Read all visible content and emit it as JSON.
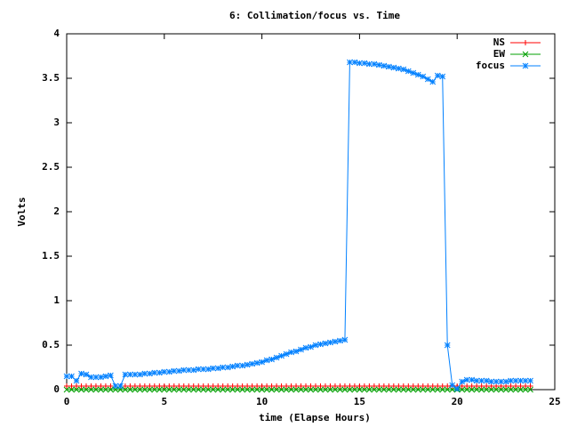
{
  "chart_data": {
    "type": "line",
    "title": "6: Collimation/focus vs. Time",
    "x_label": "time (Elapse Hours)",
    "y_label": "Volts",
    "x": [
      0,
      0.25,
      0.5,
      0.75,
      1,
      1.25,
      1.5,
      1.75,
      2,
      2.25,
      2.5,
      2.75,
      3,
      3.25,
      3.5,
      3.75,
      4,
      4.25,
      4.5,
      4.75,
      5,
      5.25,
      5.5,
      5.75,
      6,
      6.25,
      6.5,
      6.75,
      7,
      7.25,
      7.5,
      7.75,
      8,
      8.25,
      8.5,
      8.75,
      9,
      9.25,
      9.5,
      9.75,
      10,
      10.25,
      10.5,
      10.75,
      11,
      11.25,
      11.5,
      11.75,
      12,
      12.25,
      12.5,
      12.75,
      13,
      13.25,
      13.5,
      13.75,
      14,
      14.25,
      14.5,
      14.75,
      15,
      15.25,
      15.5,
      15.75,
      16,
      16.25,
      16.5,
      16.75,
      17,
      17.25,
      17.5,
      17.75,
      18,
      18.25,
      18.5,
      18.75,
      19,
      19.25,
      19.5,
      19.75,
      20,
      20.25,
      20.5,
      20.75,
      21,
      21.25,
      21.5,
      21.75,
      22,
      22.25,
      22.5,
      22.75,
      23,
      23.25,
      23.5,
      23.75
    ],
    "series": [
      {
        "name": "NS",
        "color": "#ff0000",
        "marker": "plus",
        "values": [
          0.04,
          0.04,
          0.04,
          0.04,
          0.04,
          0.04,
          0.04,
          0.04,
          0.04,
          0.04,
          0.04,
          0.04,
          0.04,
          0.04,
          0.04,
          0.04,
          0.04,
          0.04,
          0.04,
          0.04,
          0.04,
          0.04,
          0.04,
          0.04,
          0.04,
          0.04,
          0.04,
          0.04,
          0.04,
          0.04,
          0.04,
          0.04,
          0.04,
          0.04,
          0.04,
          0.04,
          0.04,
          0.04,
          0.04,
          0.04,
          0.04,
          0.04,
          0.04,
          0.04,
          0.04,
          0.04,
          0.04,
          0.04,
          0.04,
          0.04,
          0.04,
          0.04,
          0.04,
          0.04,
          0.04,
          0.04,
          0.04,
          0.04,
          0.04,
          0.04,
          0.04,
          0.04,
          0.04,
          0.04,
          0.04,
          0.04,
          0.04,
          0.04,
          0.04,
          0.04,
          0.04,
          0.04,
          0.04,
          0.04,
          0.04,
          0.04,
          0.04,
          0.04,
          0.04,
          0.04,
          0.04,
          0.04,
          0.04,
          0.04,
          0.04,
          0.04,
          0.04,
          0.04,
          0.04,
          0.04,
          0.04,
          0.04,
          0.04,
          0.04,
          0.04,
          0.04
        ]
      },
      {
        "name": "EW",
        "color": "#00a000",
        "marker": "cross",
        "values": [
          0,
          0,
          0,
          0,
          0,
          0,
          0,
          0,
          0,
          0,
          0,
          0,
          0,
          0,
          0,
          0,
          0,
          0,
          0,
          0,
          0,
          0,
          0,
          0,
          0,
          0,
          0,
          0,
          0,
          0,
          0,
          0,
          0,
          0,
          0,
          0,
          0,
          0,
          0,
          0,
          0,
          0,
          0,
          0,
          0,
          0,
          0,
          0,
          0,
          0,
          0,
          0,
          0,
          0,
          0,
          0,
          0,
          0,
          0,
          0,
          0,
          0,
          0,
          0,
          0,
          0,
          0,
          0,
          0,
          0,
          0,
          0,
          0,
          0,
          0,
          0,
          0,
          0,
          0,
          0,
          0,
          0,
          0,
          0,
          0,
          0,
          0,
          0,
          0,
          0,
          0,
          0,
          0,
          0,
          0,
          0
        ]
      },
      {
        "name": "focus",
        "color": "#0080ff",
        "marker": "star",
        "values": [
          0.15,
          0.15,
          0.1,
          0.18,
          0.17,
          0.14,
          0.14,
          0.14,
          0.15,
          0.16,
          0.04,
          0.04,
          0.17,
          0.17,
          0.17,
          0.17,
          0.18,
          0.18,
          0.19,
          0.19,
          0.2,
          0.2,
          0.21,
          0.21,
          0.22,
          0.22,
          0.22,
          0.23,
          0.23,
          0.23,
          0.24,
          0.24,
          0.25,
          0.25,
          0.26,
          0.27,
          0.27,
          0.28,
          0.29,
          0.3,
          0.31,
          0.33,
          0.34,
          0.36,
          0.38,
          0.4,
          0.42,
          0.43,
          0.45,
          0.47,
          0.48,
          0.5,
          0.51,
          0.52,
          0.53,
          0.54,
          0.55,
          0.56,
          3.68,
          3.68,
          3.67,
          3.67,
          3.66,
          3.66,
          3.65,
          3.64,
          3.63,
          3.62,
          3.61,
          3.6,
          3.58,
          3.56,
          3.54,
          3.52,
          3.49,
          3.46,
          3.53,
          3.52,
          0.5,
          0.05,
          0.01,
          0.09,
          0.11,
          0.11,
          0.1,
          0.1,
          0.1,
          0.09,
          0.09,
          0.09,
          0.09,
          0.1,
          0.1,
          0.1,
          0.1,
          0.1
        ]
      }
    ],
    "xlim": [
      0,
      25
    ],
    "xticks": [
      0,
      5,
      10,
      15,
      20,
      25
    ],
    "ylim": [
      0,
      4
    ],
    "yticks": [
      0,
      0.5,
      1,
      1.5,
      2,
      2.5,
      3,
      3.5,
      4
    ],
    "grid": false,
    "legend": "top-right"
  }
}
